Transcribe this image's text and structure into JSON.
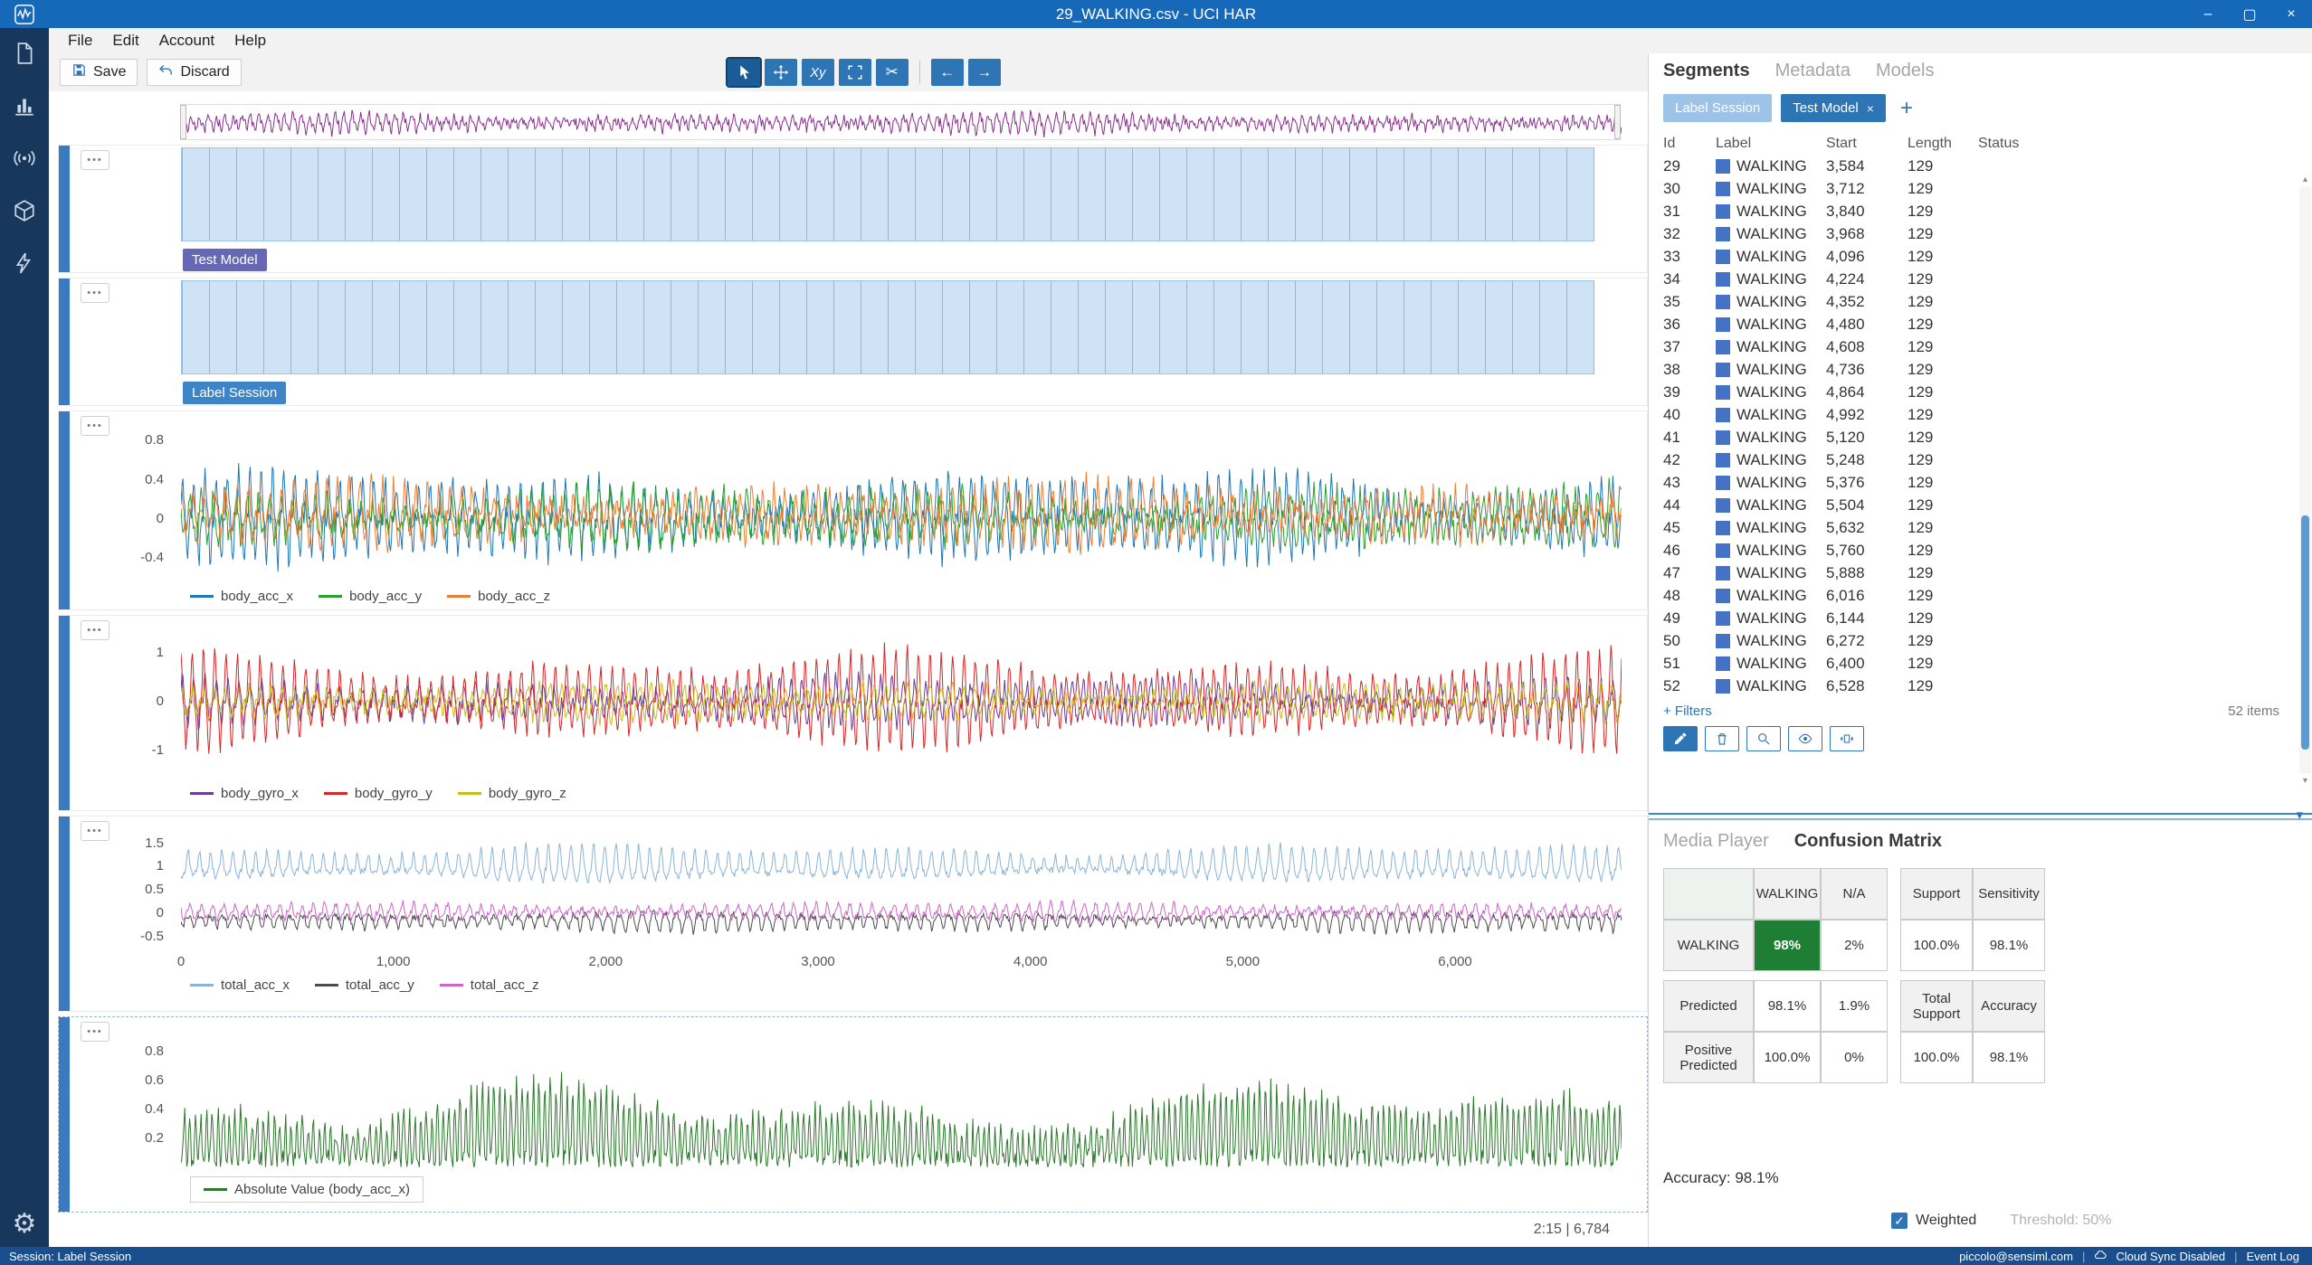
{
  "window": {
    "title": "29_WALKING.csv - UCI HAR",
    "controls": [
      "minimize",
      "maximize",
      "close"
    ]
  },
  "menu": {
    "items": [
      "File",
      "Edit",
      "Account",
      "Help"
    ]
  },
  "toolbar": {
    "save_label": "Save",
    "discard_label": "Discard",
    "tools": [
      {
        "name": "select-tool",
        "active": true
      },
      {
        "name": "pan-tool"
      },
      {
        "name": "xy-tool",
        "label": "Xy"
      },
      {
        "name": "fit-tool"
      },
      {
        "name": "cut-tool"
      },
      {
        "name": "separator"
      },
      {
        "name": "back-tool"
      },
      {
        "name": "forward-tool"
      }
    ]
  },
  "sidebar": {
    "icons": [
      "file-icon",
      "bar-chart-icon",
      "signal-icon",
      "cube-icon",
      "lightning-icon"
    ],
    "bottom_icon": "gear-icon"
  },
  "segment_tracks": [
    {
      "label": "Test Model",
      "chip_color": "#6668b5",
      "segments": 52
    },
    {
      "label": "Label Session",
      "chip_color": "#3d85c6",
      "segments": 52
    }
  ],
  "footer_label": "2:15 | 6,784",
  "segments_panel": {
    "tabs": [
      "Segments",
      "Metadata",
      "Models"
    ],
    "active_tab": "Segments",
    "session_chips": [
      {
        "label": "Label Session",
        "active": false
      },
      {
        "label": "Test Model",
        "active": true,
        "closable": true
      }
    ],
    "add_button_label": "+",
    "table": {
      "columns": [
        "Id",
        "Label",
        "Start",
        "Length",
        "Status"
      ],
      "label_color": "#4472c4",
      "status_color": "#3fa33f",
      "rows": [
        [
          "29",
          "WALKING",
          "3,584",
          "129"
        ],
        [
          "30",
          "WALKING",
          "3,712",
          "129"
        ],
        [
          "31",
          "WALKING",
          "3,840",
          "129"
        ],
        [
          "32",
          "WALKING",
          "3,968",
          "129"
        ],
        [
          "33",
          "WALKING",
          "4,096",
          "129"
        ],
        [
          "34",
          "WALKING",
          "4,224",
          "129"
        ],
        [
          "35",
          "WALKING",
          "4,352",
          "129"
        ],
        [
          "36",
          "WALKING",
          "4,480",
          "129"
        ],
        [
          "37",
          "WALKING",
          "4,608",
          "129"
        ],
        [
          "38",
          "WALKING",
          "4,736",
          "129"
        ],
        [
          "39",
          "WALKING",
          "4,864",
          "129"
        ],
        [
          "40",
          "WALKING",
          "4,992",
          "129"
        ],
        [
          "41",
          "WALKING",
          "5,120",
          "129"
        ],
        [
          "42",
          "WALKING",
          "5,248",
          "129"
        ],
        [
          "43",
          "WALKING",
          "5,376",
          "129"
        ],
        [
          "44",
          "WALKING",
          "5,504",
          "129"
        ],
        [
          "45",
          "WALKING",
          "5,632",
          "129"
        ],
        [
          "46",
          "WALKING",
          "5,760",
          "129"
        ],
        [
          "47",
          "WALKING",
          "5,888",
          "129"
        ],
        [
          "48",
          "WALKING",
          "6,016",
          "129"
        ],
        [
          "49",
          "WALKING",
          "6,144",
          "129"
        ],
        [
          "50",
          "WALKING",
          "6,272",
          "129"
        ],
        [
          "51",
          "WALKING",
          "6,400",
          "129"
        ],
        [
          "52",
          "WALKING",
          "6,528",
          "129"
        ]
      ]
    },
    "filters_label": "+ Filters",
    "items_label": "52 items",
    "actions": [
      {
        "name": "edit-segment-button",
        "active": true
      },
      {
        "name": "delete-segment-button"
      },
      {
        "name": "zoom-to-segment-button"
      },
      {
        "name": "toggle-segment-visibility-button"
      },
      {
        "name": "expand-segment-button"
      }
    ]
  },
  "bottom_panel": {
    "tabs": [
      "Media Player",
      "Confusion Matrix"
    ],
    "active_tab": "Confusion Matrix",
    "confusion_matrix": {
      "header": [
        "",
        "WALKING",
        "N/A",
        "Support",
        "Sensitivity"
      ],
      "rows": [
        {
          "cells": [
            "WALKING",
            "98%",
            "2%",
            "100.0%",
            "98.1%"
          ],
          "styles": [
            "rowhead",
            "diag",
            "val",
            "val",
            "val"
          ]
        },
        {
          "cells": [
            "Predicted",
            "98.1%",
            "1.9%",
            "Total Support",
            "Accuracy"
          ],
          "styles": [
            "rowhead",
            "val",
            "val",
            "head",
            "head"
          ]
        },
        {
          "cells": [
            "Positive Predicted",
            "100.0%",
            "0%",
            "100.0%",
            "98.1%"
          ],
          "styles": [
            "rowhead",
            "val",
            "val",
            "val",
            "val"
          ]
        }
      ],
      "diag_color": "#1e7e34"
    },
    "accuracy_label": "Accuracy: 98.1%",
    "weighted_label": "Weighted",
    "weighted_checked": true,
    "threshold_label": "Threshold: 50%"
  },
  "status_bar": {
    "left": "Session: Label Session",
    "user": "piccolo@sensiml.com",
    "cloud": "Cloud Sync Disabled",
    "event_log": "Event Log"
  },
  "chart_data": [
    {
      "id": "overview",
      "type": "line",
      "role": "file-overview-strip",
      "x_range": [
        0,
        6784
      ],
      "series": [
        {
          "name": "overview_waveform",
          "color": "#8b2f8f"
        }
      ]
    },
    {
      "id": "body_acc",
      "type": "line",
      "y_ticks": [
        "0.8",
        "0.4",
        "0",
        "-0.4"
      ],
      "y_range": [
        -0.62,
        0.97
      ],
      "x_range": [
        0,
        6784
      ],
      "series": [
        {
          "name": "body_acc_x",
          "color": "#1f77b4"
        },
        {
          "name": "body_acc_y",
          "color": "#2ca02c"
        },
        {
          "name": "body_acc_z",
          "color": "#ed7d31"
        }
      ]
    },
    {
      "id": "body_gyro",
      "type": "line",
      "y_ticks": [
        "1",
        "0",
        "-1"
      ],
      "y_range": [
        -1.5,
        1.5
      ],
      "x_range": [
        0,
        6784
      ],
      "series": [
        {
          "name": "body_gyro_x",
          "color": "#6a3d9a"
        },
        {
          "name": "body_gyro_y",
          "color": "#d62728"
        },
        {
          "name": "body_gyro_z",
          "color": "#c9bc1f"
        }
      ]
    },
    {
      "id": "total_acc",
      "type": "line",
      "y_ticks": [
        "1.5",
        "1",
        "0.5",
        "0",
        "-0.5"
      ],
      "y_range": [
        -0.75,
        1.8
      ],
      "x_range": [
        0,
        6784
      ],
      "x_ticks": [
        "0",
        "1,000",
        "2,000",
        "3,000",
        "4,000",
        "5,000",
        "6,000"
      ],
      "series": [
        {
          "name": "total_acc_x",
          "color": "#8ab4d8"
        },
        {
          "name": "total_acc_y",
          "color": "#4d4d4d"
        },
        {
          "name": "total_acc_z",
          "color": "#cc66cc"
        }
      ]
    },
    {
      "id": "abs_body_acc_x",
      "type": "line",
      "y_ticks": [
        "0.8",
        "0.6",
        "0.4",
        "0.2"
      ],
      "y_range": [
        0,
        0.95
      ],
      "x_range": [
        0,
        6784
      ],
      "legend_boxed": true,
      "series": [
        {
          "name": "Absolute Value (body_acc_x)",
          "color": "#2d7a2d"
        }
      ]
    }
  ]
}
